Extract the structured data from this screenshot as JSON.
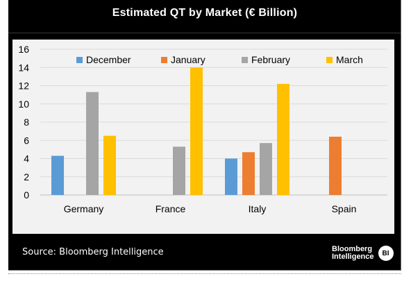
{
  "chart_data": {
    "type": "bar",
    "title": "Estimated QT by Market (€ Billion)",
    "categories": [
      "Germany",
      "France",
      "Italy",
      "Spain"
    ],
    "series": [
      {
        "name": "December",
        "color": "#5b9bd5",
        "values": [
          4.3,
          null,
          4.0,
          null
        ]
      },
      {
        "name": "January",
        "color": "#ed7d31",
        "values": [
          null,
          null,
          4.7,
          6.4
        ]
      },
      {
        "name": "February",
        "color": "#a5a5a5",
        "values": [
          11.3,
          5.3,
          5.7,
          null
        ]
      },
      {
        "name": "March",
        "color": "#ffc000",
        "values": [
          6.5,
          14.0,
          12.2,
          null
        ]
      }
    ],
    "ylim": [
      0,
      16
    ],
    "yticks": [
      0,
      2,
      4,
      6,
      8,
      10,
      12,
      14,
      16
    ],
    "grid": true,
    "legend": "top"
  },
  "source": "Source: Bloomberg Intelligence",
  "logo": {
    "line1": "Bloomberg",
    "line2": "Intelligence",
    "badge": "BI"
  }
}
